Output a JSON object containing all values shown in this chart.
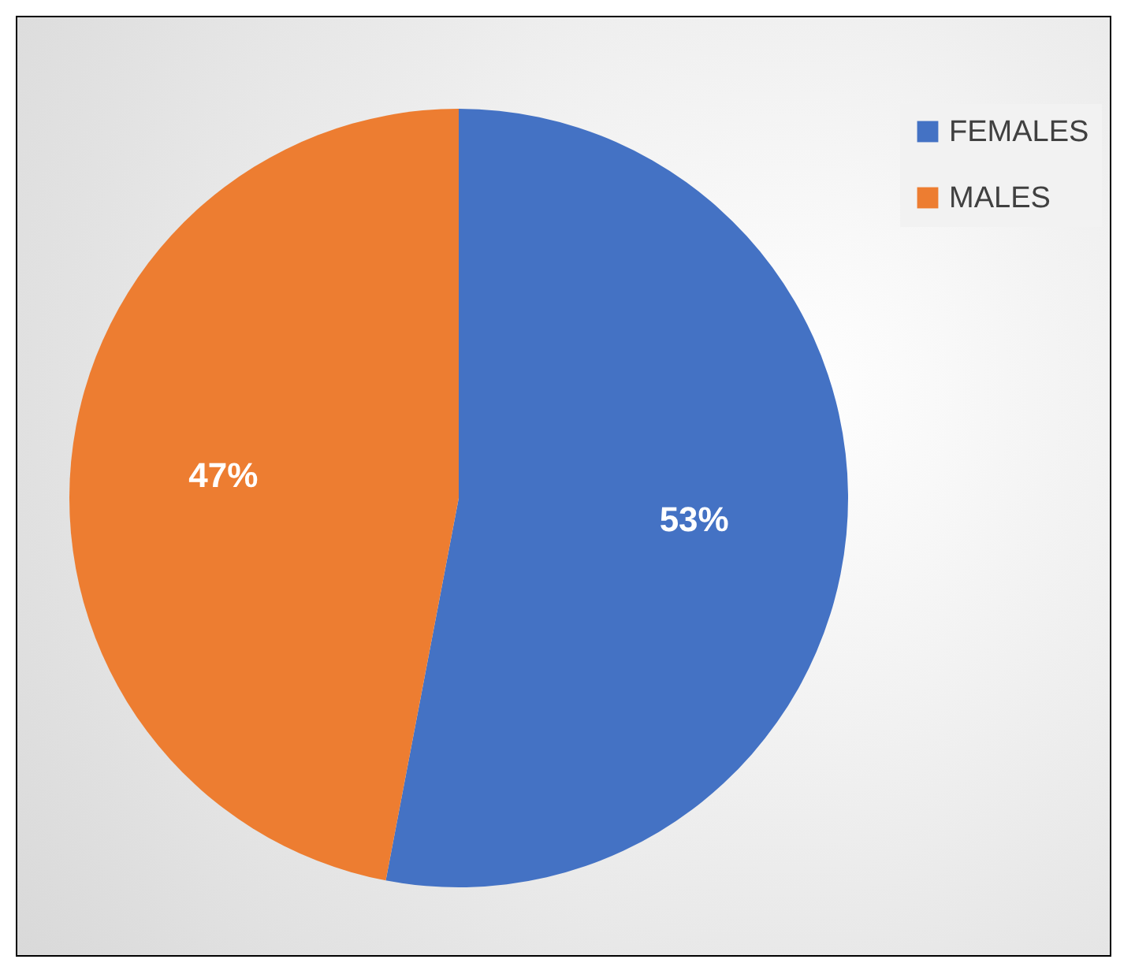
{
  "chart_data": {
    "type": "pie",
    "categories": [
      "FEMALES",
      "MALES"
    ],
    "values": [
      53,
      47
    ],
    "colors": [
      "#4472c4",
      "#ed7d31"
    ],
    "value_labels": [
      "53%",
      "47%"
    ],
    "legend": "right"
  }
}
